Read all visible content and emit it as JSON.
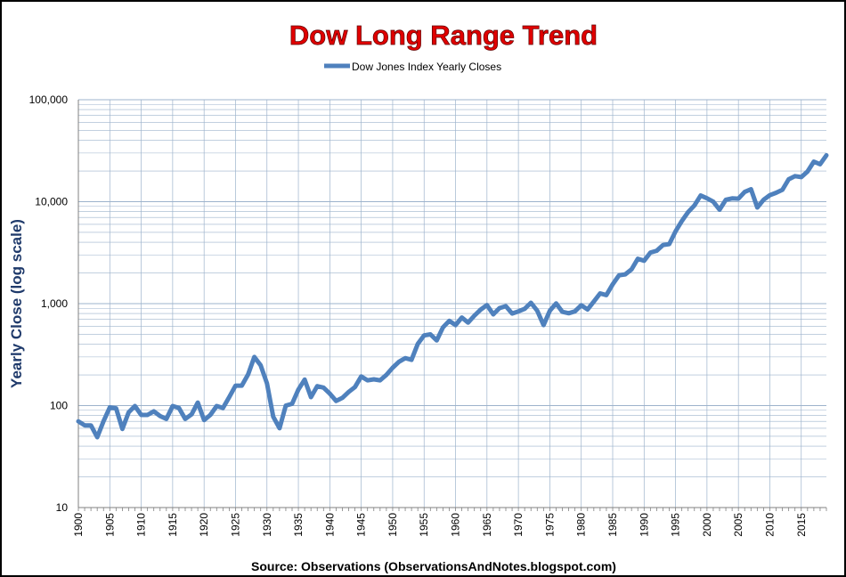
{
  "chart_data": {
    "type": "line",
    "title": "Dow Long Range Trend",
    "ylabel": "Yearly Close (log scale)",
    "xlabel": "",
    "source": "Source: Observations (ObservationsAndNotes.blogspot.com)",
    "y_scale": "log",
    "ylim": [
      10,
      100000
    ],
    "xlim": [
      1900,
      2019
    ],
    "grid": true,
    "legend_position": "top",
    "colors": {
      "line": "#4f81bd",
      "title": "#e00000",
      "ylabel": "#1f3a6b",
      "grid": "#9db3cc"
    },
    "y_ticks": [
      "10",
      "100",
      "1,000",
      "10,000",
      "100,000"
    ],
    "x_ticks": [
      "1900",
      "1905",
      "1910",
      "1915",
      "1920",
      "1925",
      "1930",
      "1935",
      "1940",
      "1945",
      "1950",
      "1955",
      "1960",
      "1965",
      "1970",
      "1975",
      "1980",
      "1985",
      "1990",
      "1995",
      "2000",
      "2005",
      "2010",
      "2015"
    ],
    "series": [
      {
        "name": "Dow Jones Index Yearly Closes",
        "x": [
          1900,
          1901,
          1902,
          1903,
          1904,
          1905,
          1906,
          1907,
          1908,
          1909,
          1910,
          1911,
          1912,
          1913,
          1914,
          1915,
          1916,
          1917,
          1918,
          1919,
          1920,
          1921,
          1922,
          1923,
          1924,
          1925,
          1926,
          1927,
          1928,
          1929,
          1930,
          1931,
          1932,
          1933,
          1934,
          1935,
          1936,
          1937,
          1938,
          1939,
          1940,
          1941,
          1942,
          1943,
          1944,
          1945,
          1946,
          1947,
          1948,
          1949,
          1950,
          1951,
          1952,
          1953,
          1954,
          1955,
          1956,
          1957,
          1958,
          1959,
          1960,
          1961,
          1962,
          1963,
          1964,
          1965,
          1966,
          1967,
          1968,
          1969,
          1970,
          1971,
          1972,
          1973,
          1974,
          1975,
          1976,
          1977,
          1978,
          1979,
          1980,
          1981,
          1982,
          1983,
          1984,
          1985,
          1986,
          1987,
          1988,
          1989,
          1990,
          1991,
          1992,
          1993,
          1994,
          1995,
          1996,
          1997,
          1998,
          1999,
          2000,
          2001,
          2002,
          2003,
          2004,
          2005,
          2006,
          2007,
          2008,
          2009,
          2010,
          2011,
          2012,
          2013,
          2014,
          2015,
          2016,
          2017,
          2018,
          2019
        ],
        "values": [
          70,
          64,
          64,
          49,
          70,
          96,
          94,
          59,
          86,
          99,
          81,
          81,
          88,
          79,
          74,
          99,
          95,
          74,
          82,
          107,
          72,
          81,
          99,
          95,
          121,
          157,
          157,
          202,
          300,
          248,
          165,
          78,
          60,
          100,
          104,
          144,
          180,
          121,
          155,
          150,
          131,
          111,
          119,
          136,
          152,
          193,
          177,
          181,
          177,
          200,
          235,
          269,
          292,
          281,
          404,
          488,
          500,
          436,
          584,
          679,
          616,
          731,
          652,
          763,
          874,
          969,
          786,
          905,
          944,
          800,
          839,
          890,
          1020,
          851,
          616,
          852,
          1005,
          831,
          805,
          839,
          964,
          875,
          1047,
          1259,
          1212,
          1547,
          1896,
          1939,
          2169,
          2753,
          2634,
          3169,
          3301,
          3754,
          3834,
          5117,
          6448,
          7908,
          9181,
          11497,
          10787,
          10022,
          8342,
          10454,
          10783,
          10718,
          12463,
          13265,
          8776,
          10428,
          11578,
          12218,
          13104,
          16577,
          17823,
          17425,
          19763,
          24719,
          23327,
          28538
        ]
      }
    ]
  }
}
